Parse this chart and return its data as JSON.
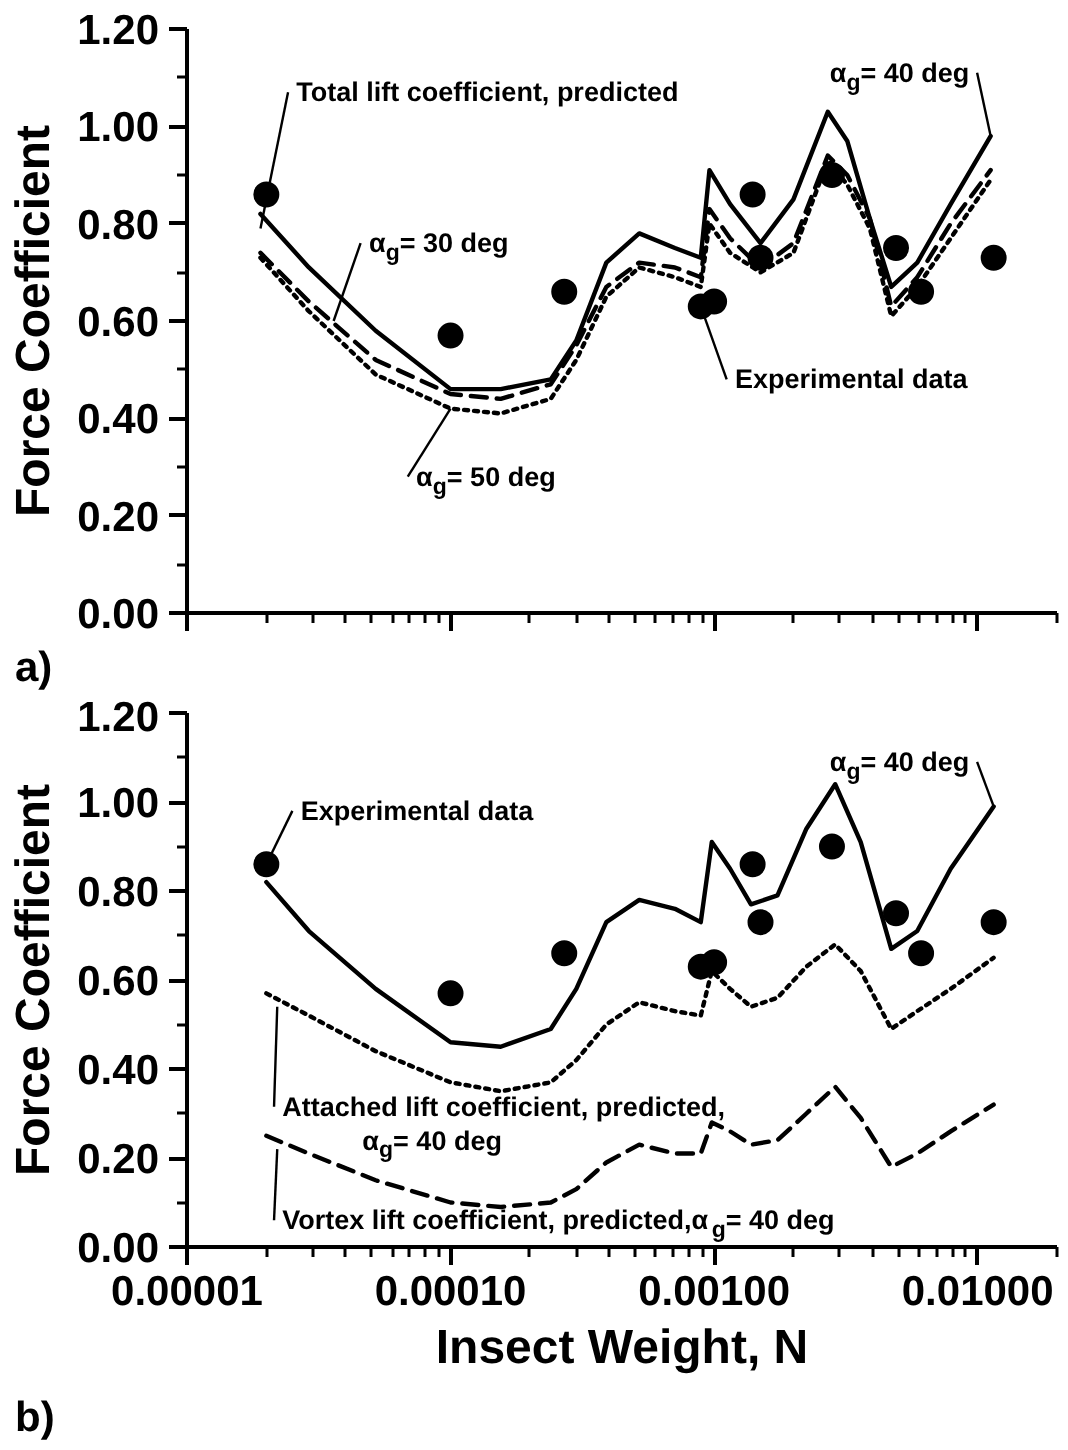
{
  "chart_data": [
    {
      "type": "line",
      "ylabel": "Force Coefficient",
      "log": "x",
      "tick_labels": "y",
      "xlim": [
        1e-05,
        0.02
      ],
      "xticks": [
        {
          "value": 1e-05,
          "label": null
        },
        {
          "value": 0.0001,
          "label": null
        },
        {
          "value": 0.001,
          "label": null
        },
        {
          "value": 0.01,
          "label": null
        }
      ],
      "ylim": [
        0,
        1.2
      ],
      "yticks": [
        {
          "value": 0,
          "label": "0.00"
        },
        {
          "value": 0.2,
          "label": "0.20"
        },
        {
          "value": 0.4,
          "label": "0.40"
        },
        {
          "value": 0.6,
          "label": "0.60"
        },
        {
          "value": 0.8,
          "label": "0.80"
        },
        {
          "value": 1.0,
          "label": "1.00"
        },
        {
          "value": 1.2,
          "label": "1.20"
        }
      ],
      "series": [
        {
          "line_style": "solid",
          "color": "#000000",
          "x": [
            1.9e-05,
            2.9e-05,
            5.2e-05,
            0.0001,
            0.000155,
            0.00024,
            0.0003,
            0.00039,
            0.00052,
            0.00071,
            0.00089,
            0.00096,
            0.00115,
            0.0015,
            0.002,
            0.0027,
            0.0032,
            0.0039,
            0.0047,
            0.0059,
            0.0079,
            0.0112
          ],
          "values": [
            0.82,
            0.71,
            0.58,
            0.46,
            0.46,
            0.48,
            0.56,
            0.72,
            0.78,
            0.75,
            0.73,
            0.91,
            0.84,
            0.76,
            0.85,
            1.03,
            0.97,
            0.81,
            0.67,
            0.72,
            0.84,
            0.98
          ]
        },
        {
          "line_style": "dashed",
          "color": "#000000",
          "x": [
            1.9e-05,
            2.9e-05,
            5.2e-05,
            0.0001,
            0.000155,
            0.00024,
            0.0003,
            0.00039,
            0.00052,
            0.00071,
            0.00089,
            0.00096,
            0.00115,
            0.0015,
            0.002,
            0.0027,
            0.0032,
            0.0039,
            0.0047,
            0.0059,
            0.0079,
            0.0112
          ],
          "values": [
            0.74,
            0.64,
            0.52,
            0.45,
            0.44,
            0.47,
            0.55,
            0.67,
            0.72,
            0.71,
            0.69,
            0.83,
            0.77,
            0.71,
            0.76,
            0.94,
            0.9,
            0.81,
            0.63,
            0.69,
            0.8,
            0.91
          ]
        },
        {
          "line_style": "dotted",
          "color": "#000000",
          "x": [
            1.9e-05,
            2.9e-05,
            5.2e-05,
            0.0001,
            0.000155,
            0.00024,
            0.0003,
            0.00039,
            0.00052,
            0.00071,
            0.00089,
            0.00096,
            0.00115,
            0.0015,
            0.002,
            0.0027,
            0.0032,
            0.0039,
            0.0047,
            0.0059,
            0.0079,
            0.0112
          ],
          "values": [
            0.73,
            0.62,
            0.49,
            0.42,
            0.41,
            0.44,
            0.52,
            0.65,
            0.71,
            0.69,
            0.67,
            0.8,
            0.74,
            0.7,
            0.74,
            0.93,
            0.88,
            0.79,
            0.61,
            0.67,
            0.77,
            0.89
          ]
        },
        {
          "type": "scatter",
          "marker": "circle",
          "color": "#000000",
          "x": [
            2e-05,
            0.0001,
            0.00027,
            0.00089,
            0.001,
            0.0014,
            0.0015,
            0.0028,
            0.0049,
            0.0061,
            0.0115
          ],
          "values": [
            0.86,
            0.57,
            0.66,
            0.63,
            0.64,
            0.86,
            0.73,
            0.9,
            0.75,
            0.66,
            0.73
          ]
        }
      ],
      "annotations": [
        {
          "text": "Total lift coefficient, predicted",
          "x": 1.9e-05,
          "y": 0.79
        },
        {
          "text": "α$_{g}$= 40 deg",
          "x": 0.0112,
          "y": 0.98
        },
        {
          "text": "α$_{g}$= 30 deg",
          "x": 3.6e-05,
          "y": 0.6
        },
        {
          "text": "α$_{g}$= 50 deg",
          "x": 0.0001,
          "y": 0.42
        },
        {
          "text": "Experimental data",
          "x": 0.00089,
          "y": 0.63
        },
        "a)"
      ]
    },
    {
      "type": "line",
      "xlabel": "Insect Weight, N",
      "ylabel": "Force Coefficient",
      "log": "x",
      "xlim": [
        1e-05,
        0.02
      ],
      "xticks": [
        {
          "value": 1e-05,
          "label": "0.00001"
        },
        {
          "value": 0.0001,
          "label": "0.00010"
        },
        {
          "value": 0.001,
          "label": "0.00100"
        },
        {
          "value": 0.01,
          "label": "0.01000"
        }
      ],
      "ylim": [
        0,
        1.2
      ],
      "yticks": [
        {
          "value": 0,
          "label": "0.00"
        },
        {
          "value": 0.2,
          "label": "0.20"
        },
        {
          "value": 0.4,
          "label": "0.40"
        },
        {
          "value": 0.6,
          "label": "0.60"
        },
        {
          "value": 0.8,
          "label": "0.80"
        },
        {
          "value": 1.0,
          "label": "1.00"
        },
        {
          "value": 1.2,
          "label": "1.20"
        }
      ],
      "series": [
        {
          "line_style": "solid",
          "color": "#000000",
          "x": [
            2e-05,
            2.9e-05,
            5.2e-05,
            0.0001,
            0.000155,
            0.00024,
            0.0003,
            0.00039,
            0.00052,
            0.00071,
            0.00089,
            0.00098,
            0.00115,
            0.00138,
            0.00174,
            0.00224,
            0.00288,
            0.0036,
            0.0047,
            0.0059,
            0.0079,
            0.0115
          ],
          "values": [
            0.82,
            0.71,
            0.58,
            0.46,
            0.45,
            0.49,
            0.58,
            0.73,
            0.78,
            0.76,
            0.73,
            0.91,
            0.85,
            0.77,
            0.79,
            0.94,
            1.04,
            0.91,
            0.67,
            0.71,
            0.85,
            0.99
          ]
        },
        {
          "line_style": "dotted",
          "color": "#000000",
          "x": [
            2e-05,
            2.9e-05,
            5.2e-05,
            0.0001,
            0.000155,
            0.00024,
            0.0003,
            0.00039,
            0.00052,
            0.00071,
            0.00089,
            0.00098,
            0.00115,
            0.00138,
            0.00174,
            0.00224,
            0.00288,
            0.0036,
            0.0047,
            0.0059,
            0.0079,
            0.0115
          ],
          "values": [
            0.57,
            0.52,
            0.44,
            0.37,
            0.35,
            0.37,
            0.42,
            0.5,
            0.55,
            0.53,
            0.52,
            0.62,
            0.58,
            0.54,
            0.56,
            0.63,
            0.68,
            0.62,
            0.49,
            0.53,
            0.58,
            0.65
          ]
        },
        {
          "line_style": "dashed",
          "color": "#000000",
          "x": [
            2e-05,
            2.9e-05,
            5.2e-05,
            0.0001,
            0.000155,
            0.00024,
            0.0003,
            0.00039,
            0.00052,
            0.00071,
            0.00089,
            0.00098,
            0.00115,
            0.00138,
            0.00174,
            0.00224,
            0.00288,
            0.0036,
            0.0047,
            0.0059,
            0.0079,
            0.0115
          ],
          "values": [
            0.25,
            0.21,
            0.15,
            0.1,
            0.09,
            0.1,
            0.13,
            0.19,
            0.23,
            0.21,
            0.21,
            0.28,
            0.26,
            0.23,
            0.24,
            0.3,
            0.36,
            0.29,
            0.18,
            0.21,
            0.26,
            0.32
          ]
        },
        {
          "type": "scatter",
          "marker": "circle",
          "color": "#000000",
          "x": [
            2e-05,
            0.0001,
            0.00027,
            0.00089,
            0.001,
            0.0014,
            0.0015,
            0.0028,
            0.0049,
            0.0061,
            0.0115
          ],
          "values": [
            0.86,
            0.57,
            0.66,
            0.63,
            0.64,
            0.86,
            0.73,
            0.9,
            0.75,
            0.66,
            0.73
          ]
        }
      ],
      "annotations": [
        {
          "text": "Experimental data",
          "x": 2e-05,
          "y": 0.86
        },
        {
          "text": "α$_{g}$= 40 deg",
          "x": 0.0115,
          "y": 0.99
        },
        {
          "text": "Attached lift coefficient, predicted,\nα$_{g}$= 40 deg",
          "x": 2.2e-05,
          "y": 0.54
        },
        {
          "text": "Vortex lift coefficient, predicted,α$_{g}$= 40 deg",
          "x": 2.2e-05,
          "y": 0.22
        },
        "b)"
      ]
    }
  ]
}
